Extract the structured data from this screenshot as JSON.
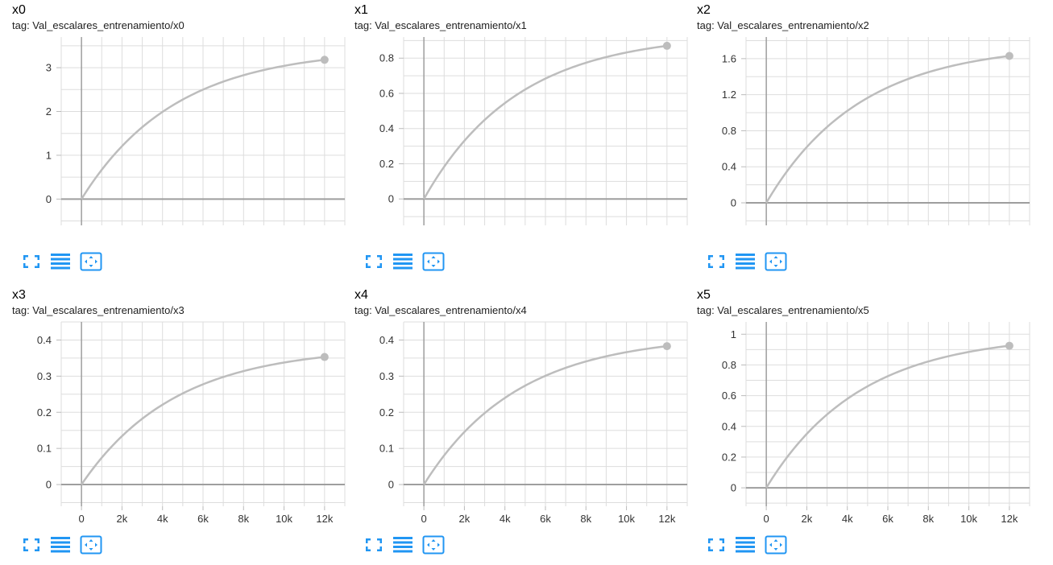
{
  "accent_color": "#2196f3",
  "line_color": "#bdbdbd",
  "grid_color": "#dddddd",
  "axis_color": "#9e9e9e",
  "control_icons": [
    "expand-icon",
    "toggle-log-icon",
    "fit-domain-icon"
  ],
  "cards": [
    {
      "title": "x0",
      "tag": "tag: Val_escalares_entrenamiento/x0"
    },
    {
      "title": "x1",
      "tag": "tag: Val_escalares_entrenamiento/x1"
    },
    {
      "title": "x2",
      "tag": "tag: Val_escalares_entrenamiento/x2"
    },
    {
      "title": "x3",
      "tag": "tag: Val_escalares_entrenamiento/x3"
    },
    {
      "title": "x4",
      "tag": "tag: Val_escalares_entrenamiento/x4"
    },
    {
      "title": "x5",
      "tag": "tag: Val_escalares_entrenamiento/x5"
    }
  ],
  "chart_data": [
    {
      "type": "line",
      "title": "x0",
      "xlim": [
        -1000,
        13000
      ],
      "ylim": [
        -0.6,
        3.7
      ],
      "yticks": [
        0,
        1,
        2,
        3
      ],
      "ytick_labels": [
        "0",
        "1",
        "2",
        "3"
      ],
      "xticks": [],
      "xtick_labels": [],
      "grid": true,
      "series": [
        {
          "x": [
            0,
            12000
          ],
          "y": [
            0,
            3.18
          ],
          "curve": "saturating",
          "end_marker": true
        }
      ]
    },
    {
      "type": "line",
      "title": "x1",
      "xlim": [
        -1000,
        13000
      ],
      "ylim": [
        -0.15,
        0.92
      ],
      "yticks": [
        0,
        0.2,
        0.4,
        0.6,
        0.8
      ],
      "ytick_labels": [
        "0",
        "0.2",
        "0.4",
        "0.6",
        "0.8"
      ],
      "xticks": [],
      "xtick_labels": [],
      "grid": true,
      "series": [
        {
          "x": [
            0,
            12000
          ],
          "y": [
            0,
            0.87
          ],
          "curve": "saturating",
          "end_marker": true
        }
      ]
    },
    {
      "type": "line",
      "title": "x2",
      "xlim": [
        -1000,
        13000
      ],
      "ylim": [
        -0.25,
        1.84
      ],
      "yticks": [
        0,
        0.4,
        0.8,
        1.2,
        1.6
      ],
      "ytick_labels": [
        "0",
        "0.4",
        "0.8",
        "1.2",
        "1.6"
      ],
      "xticks": [],
      "xtick_labels": [],
      "grid": true,
      "series": [
        {
          "x": [
            0,
            12000
          ],
          "y": [
            0,
            1.63
          ],
          "curve": "saturating",
          "end_marker": true
        }
      ]
    },
    {
      "type": "line",
      "title": "x3",
      "xlim": [
        -1000,
        13000
      ],
      "ylim": [
        -0.06,
        0.45
      ],
      "yticks": [
        0,
        0.1,
        0.2,
        0.3,
        0.4
      ],
      "ytick_labels": [
        "0",
        "0.1",
        "0.2",
        "0.3",
        "0.4"
      ],
      "xticks": [
        0,
        2000,
        4000,
        6000,
        8000,
        10000,
        12000
      ],
      "xtick_labels": [
        "0",
        "2k",
        "4k",
        "6k",
        "8k",
        "10k",
        "12k"
      ],
      "grid": true,
      "series": [
        {
          "x": [
            0,
            12000
          ],
          "y": [
            0,
            0.353
          ],
          "curve": "saturating",
          "end_marker": true
        }
      ]
    },
    {
      "type": "line",
      "title": "x4",
      "xlim": [
        -1000,
        13000
      ],
      "ylim": [
        -0.06,
        0.45
      ],
      "yticks": [
        0,
        0.1,
        0.2,
        0.3,
        0.4
      ],
      "ytick_labels": [
        "0",
        "0.1",
        "0.2",
        "0.3",
        "0.4"
      ],
      "xticks": [
        0,
        2000,
        4000,
        6000,
        8000,
        10000,
        12000
      ],
      "xtick_labels": [
        "0",
        "2k",
        "4k",
        "6k",
        "8k",
        "10k",
        "12k"
      ],
      "grid": true,
      "series": [
        {
          "x": [
            0,
            12000
          ],
          "y": [
            0,
            0.383
          ],
          "curve": "saturating",
          "end_marker": true
        }
      ]
    },
    {
      "type": "line",
      "title": "x5",
      "xlim": [
        -1000,
        13000
      ],
      "ylim": [
        -0.12,
        1.08
      ],
      "yticks": [
        0,
        0.2,
        0.4,
        0.6,
        0.8,
        1
      ],
      "ytick_labels": [
        "0",
        "0.2",
        "0.4",
        "0.6",
        "0.8",
        "1"
      ],
      "xticks": [
        0,
        2000,
        4000,
        6000,
        8000,
        10000,
        12000
      ],
      "xtick_labels": [
        "0",
        "2k",
        "4k",
        "6k",
        "8k",
        "10k",
        "12k"
      ],
      "grid": true,
      "series": [
        {
          "x": [
            0,
            12000
          ],
          "y": [
            0,
            0.925
          ],
          "curve": "saturating",
          "end_marker": true
        }
      ]
    }
  ]
}
